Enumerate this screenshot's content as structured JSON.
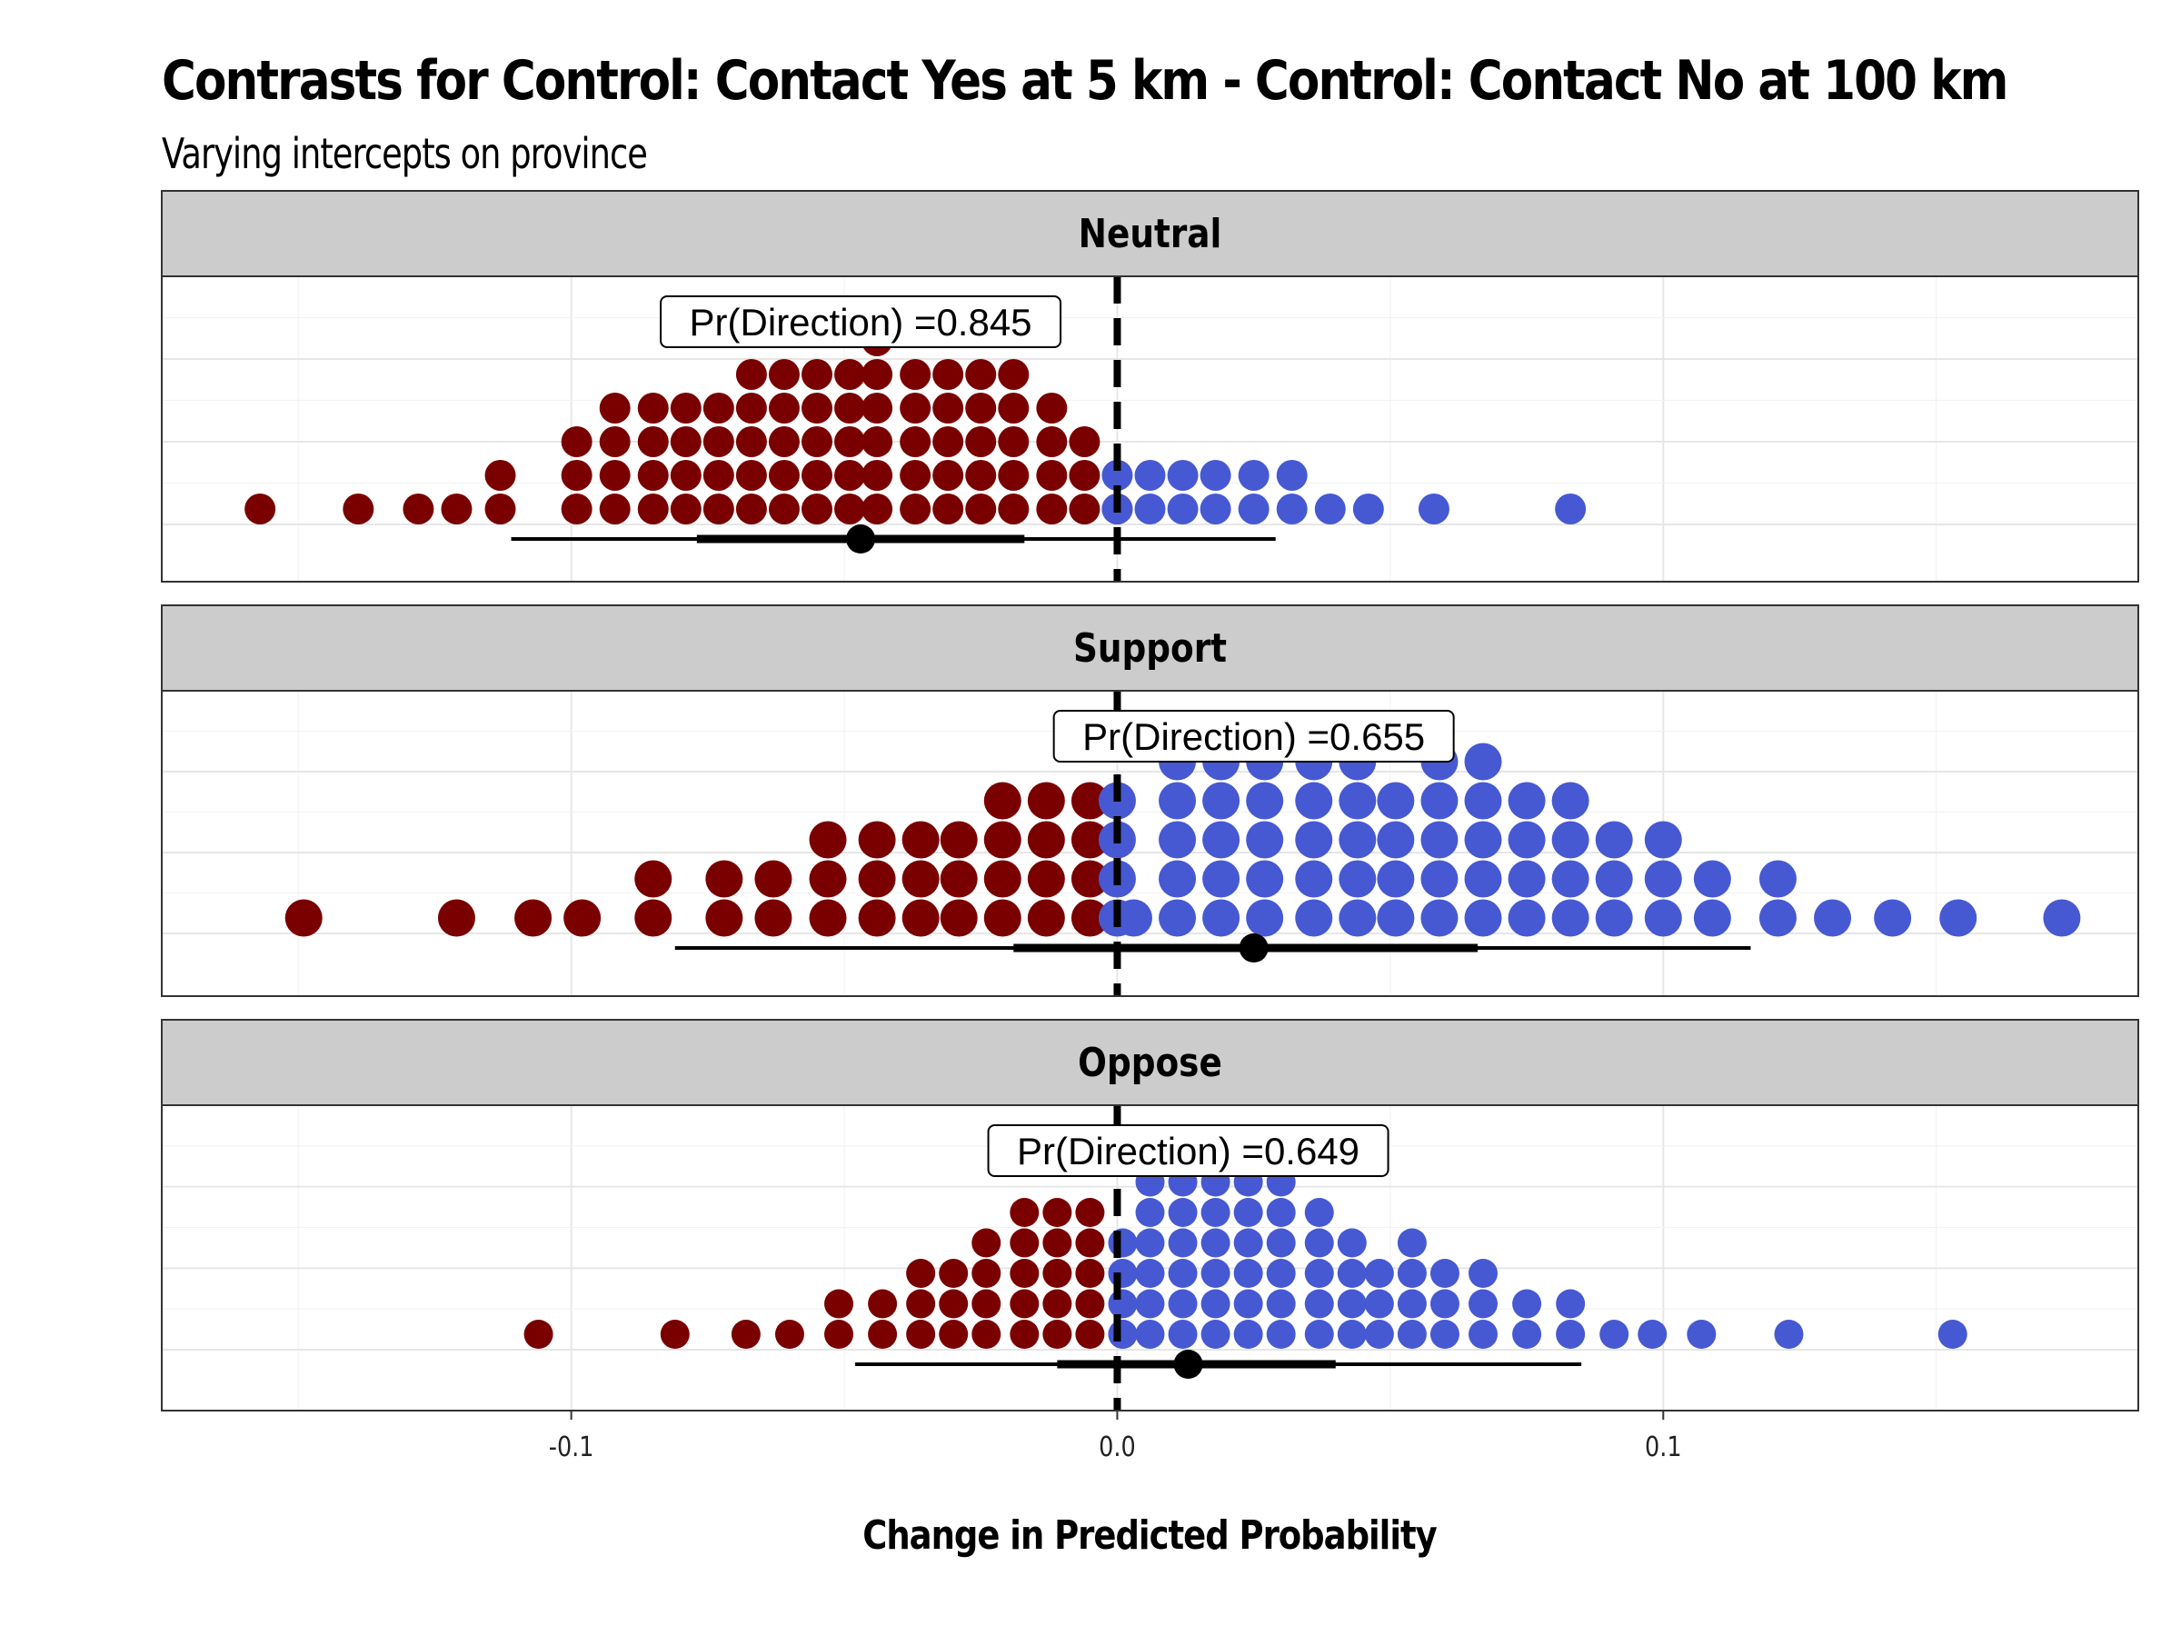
{
  "title": "Contrasts for Control: Contact Yes at 5 km - Control: Contact No at 100 km",
  "subtitle": "Varying intercepts on province",
  "colors": {
    "negative": "#7a0000",
    "positive": "#4659d2",
    "strip_fill": "#cccccc",
    "grid": "#e6e6e6",
    "grid_minor": "#f2f2f2"
  },
  "chart_data": {
    "type": "dotplot",
    "xlabel": "Change in Predicted Probability",
    "xlim": [
      -0.175,
      0.187
    ],
    "x_ticks": [
      {
        "value": -0.1,
        "label": "-0.1"
      },
      {
        "value": 0.0,
        "label": "0.0"
      },
      {
        "value": 0.1,
        "label": "0.1"
      }
    ],
    "reference_line": 0,
    "panels": [
      {
        "strip": "Neutral",
        "annotation": "Pr(Direction) =0.845",
        "label_x": -0.047,
        "point_estimate": -0.047,
        "interval_66": [
          -0.077,
          -0.017
        ],
        "interval_95": [
          -0.111,
          0.029
        ],
        "dots": [
          {
            "x": -0.157,
            "n": 1
          },
          {
            "x": -0.139,
            "n": 1
          },
          {
            "x": -0.128,
            "n": 1
          },
          {
            "x": -0.121,
            "n": 1
          },
          {
            "x": -0.113,
            "n": 2
          },
          {
            "x": -0.099,
            "n": 3
          },
          {
            "x": -0.092,
            "n": 4
          },
          {
            "x": -0.085,
            "n": 4
          },
          {
            "x": -0.079,
            "n": 4
          },
          {
            "x": -0.073,
            "n": 4
          },
          {
            "x": -0.067,
            "n": 5
          },
          {
            "x": -0.061,
            "n": 5
          },
          {
            "x": -0.055,
            "n": 5
          },
          {
            "x": -0.049,
            "n": 5
          },
          {
            "x": -0.044,
            "n": 6
          },
          {
            "x": -0.037,
            "n": 5
          },
          {
            "x": -0.031,
            "n": 5
          },
          {
            "x": -0.025,
            "n": 5
          },
          {
            "x": -0.019,
            "n": 5
          },
          {
            "x": -0.012,
            "n": 4
          },
          {
            "x": -0.006,
            "n": 3
          },
          {
            "x": 0.0,
            "n": 1
          },
          {
            "x": 0.0,
            "n": 2,
            "sign": "positive"
          },
          {
            "x": 0.006,
            "n": 2
          },
          {
            "x": 0.012,
            "n": 2
          },
          {
            "x": 0.018,
            "n": 2
          },
          {
            "x": 0.025,
            "n": 2
          },
          {
            "x": 0.032,
            "n": 2
          },
          {
            "x": 0.039,
            "n": 1
          },
          {
            "x": 0.046,
            "n": 1
          },
          {
            "x": 0.058,
            "n": 1
          },
          {
            "x": 0.083,
            "n": 1
          }
        ]
      },
      {
        "strip": "Support",
        "annotation": "Pr(Direction) =0.655",
        "label_x": 0.025,
        "point_estimate": 0.025,
        "interval_66": [
          -0.019,
          0.066
        ],
        "interval_95": [
          -0.081,
          0.116
        ],
        "dots": [
          {
            "x": -0.149,
            "n": 1
          },
          {
            "x": -0.121,
            "n": 1
          },
          {
            "x": -0.107,
            "n": 1
          },
          {
            "x": -0.098,
            "n": 1
          },
          {
            "x": -0.085,
            "n": 2
          },
          {
            "x": -0.072,
            "n": 2
          },
          {
            "x": -0.063,
            "n": 2
          },
          {
            "x": -0.053,
            "n": 3
          },
          {
            "x": -0.044,
            "n": 3
          },
          {
            "x": -0.036,
            "n": 3
          },
          {
            "x": -0.029,
            "n": 3
          },
          {
            "x": -0.021,
            "n": 4
          },
          {
            "x": -0.013,
            "n": 4
          },
          {
            "x": -0.005,
            "n": 4
          },
          {
            "x": 0.003,
            "n": 1
          },
          {
            "x": 0.0,
            "n": 4,
            "sign": "positive"
          },
          {
            "x": 0.011,
            "n": 5
          },
          {
            "x": 0.019,
            "n": 5
          },
          {
            "x": 0.027,
            "n": 5
          },
          {
            "x": 0.036,
            "n": 5
          },
          {
            "x": 0.044,
            "n": 5
          },
          {
            "x": 0.051,
            "n": 4
          },
          {
            "x": 0.059,
            "n": 5
          },
          {
            "x": 0.067,
            "n": 5
          },
          {
            "x": 0.075,
            "n": 4
          },
          {
            "x": 0.083,
            "n": 4
          },
          {
            "x": 0.091,
            "n": 3
          },
          {
            "x": 0.1,
            "n": 3
          },
          {
            "x": 0.109,
            "n": 2
          },
          {
            "x": 0.121,
            "n": 2
          },
          {
            "x": 0.131,
            "n": 1
          },
          {
            "x": 0.142,
            "n": 1
          },
          {
            "x": 0.154,
            "n": 1
          },
          {
            "x": 0.173,
            "n": 1
          }
        ]
      },
      {
        "strip": "Oppose",
        "annotation": "Pr(Direction) =0.649",
        "label_x": 0.013,
        "point_estimate": 0.013,
        "interval_66": [
          -0.011,
          0.04
        ],
        "interval_95": [
          -0.048,
          0.085
        ],
        "dots": [
          {
            "x": -0.106,
            "n": 1
          },
          {
            "x": -0.081,
            "n": 1
          },
          {
            "x": -0.068,
            "n": 1
          },
          {
            "x": -0.06,
            "n": 1
          },
          {
            "x": -0.051,
            "n": 2
          },
          {
            "x": -0.043,
            "n": 2
          },
          {
            "x": -0.036,
            "n": 3
          },
          {
            "x": -0.03,
            "n": 3
          },
          {
            "x": -0.024,
            "n": 4
          },
          {
            "x": -0.017,
            "n": 5
          },
          {
            "x": -0.011,
            "n": 5
          },
          {
            "x": -0.005,
            "n": 5
          },
          {
            "x": 0.001,
            "n": 1
          },
          {
            "x": 0.001,
            "n": 4,
            "sign": "positive"
          },
          {
            "x": 0.006,
            "n": 6
          },
          {
            "x": 0.012,
            "n": 6
          },
          {
            "x": 0.018,
            "n": 6
          },
          {
            "x": 0.024,
            "n": 6
          },
          {
            "x": 0.03,
            "n": 6
          },
          {
            "x": 0.037,
            "n": 5
          },
          {
            "x": 0.043,
            "n": 4
          },
          {
            "x": 0.048,
            "n": 3
          },
          {
            "x": 0.054,
            "n": 4
          },
          {
            "x": 0.06,
            "n": 3
          },
          {
            "x": 0.067,
            "n": 3
          },
          {
            "x": 0.075,
            "n": 2
          },
          {
            "x": 0.083,
            "n": 2
          },
          {
            "x": 0.091,
            "n": 1
          },
          {
            "x": 0.098,
            "n": 1
          },
          {
            "x": 0.107,
            "n": 1
          },
          {
            "x": 0.123,
            "n": 1
          },
          {
            "x": 0.153,
            "n": 1
          }
        ]
      }
    ]
  }
}
